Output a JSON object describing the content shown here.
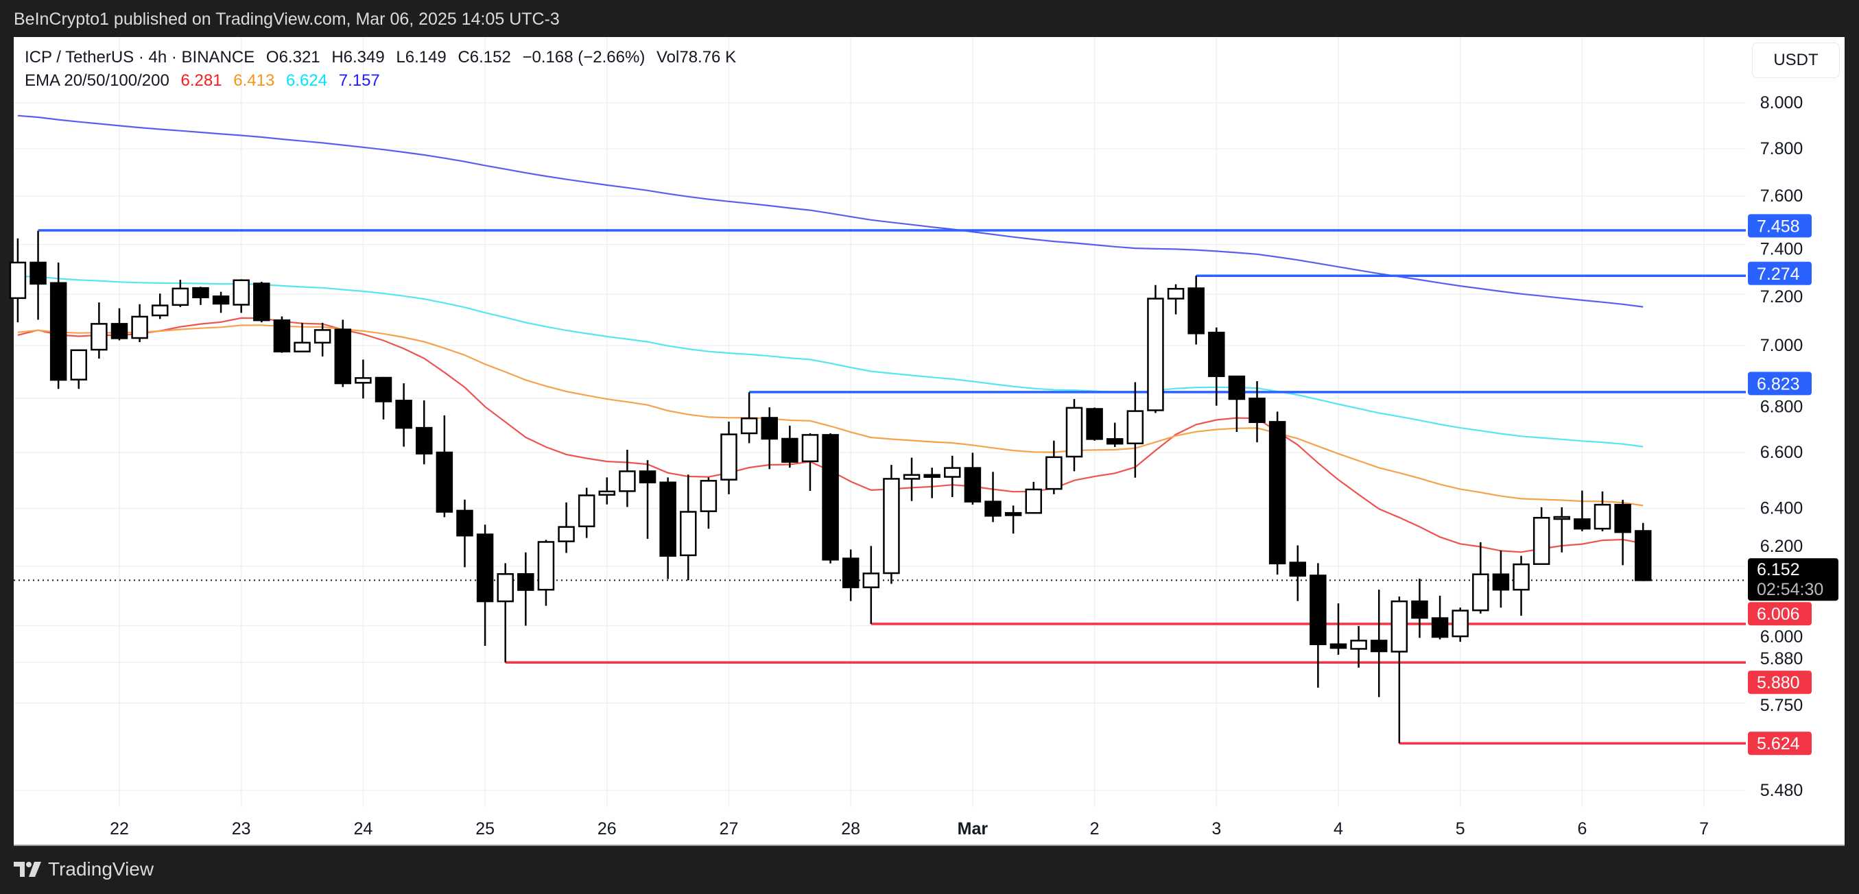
{
  "header": {
    "published": "BeInCrypto1 published on TradingView.com, Mar 06, 2025 14:05 UTC-3",
    "symbol": "ICP / TetherUS · 4h · BINANCE",
    "open": "O6.321",
    "high": "H6.349",
    "low": "L6.149",
    "close": "C6.152",
    "change": "−0.168 (−2.66%)",
    "volume": "Vol78.76 K",
    "ema_label": "EMA 20/50/100/200",
    "ema_values": [
      "6.281",
      "6.413",
      "6.624",
      "7.157"
    ]
  },
  "currency": "USDT",
  "footer": {
    "brand": "TradingView"
  },
  "colors": {
    "ema20": "#ef5350",
    "ema50": "#f7a14b",
    "ema100": "#55e6f0",
    "ema200": "#5c5cf0",
    "ema20_text": "#ff1a1a",
    "ema50_text": "#f7931a",
    "ema100_text": "#00e5ff",
    "ema200_text": "#1a1aff",
    "support": "#f23645",
    "resistance": "#2962ff"
  },
  "chart_data": {
    "type": "candlestick",
    "title": "ICP / TetherUS · 4h · BINANCE",
    "scale": "log",
    "ylim": [
      5.4,
      8.1
    ],
    "y_ticks": [
      "8.000",
      "7.800",
      "7.600",
      "7.400",
      "7.200",
      "7.000",
      "6.800",
      "6.600",
      "6.400",
      "6.200",
      "6.000",
      "5.880",
      "5.750",
      "5.480"
    ],
    "x_ticks": [
      {
        "label": "22",
        "bold": false
      },
      {
        "label": "23",
        "bold": false
      },
      {
        "label": "24",
        "bold": false
      },
      {
        "label": "25",
        "bold": false
      },
      {
        "label": "26",
        "bold": false
      },
      {
        "label": "27",
        "bold": false
      },
      {
        "label": "28",
        "bold": false
      },
      {
        "label": "Mar",
        "bold": true
      },
      {
        "label": "2",
        "bold": false
      },
      {
        "label": "3",
        "bold": false
      },
      {
        "label": "4",
        "bold": false
      },
      {
        "label": "5",
        "bold": false
      },
      {
        "label": "6",
        "bold": false
      },
      {
        "label": "7",
        "bold": false
      }
    ],
    "candles_before_first_tick": 5,
    "candles_per_day": 6,
    "ohlc": [
      [
        7.185,
        7.425,
        7.09,
        7.327
      ],
      [
        7.327,
        7.456,
        7.1,
        7.242
      ],
      [
        7.245,
        7.327,
        6.835,
        6.869
      ],
      [
        6.87,
        6.985,
        6.835,
        6.982
      ],
      [
        6.984,
        7.168,
        6.95,
        7.084
      ],
      [
        7.084,
        7.145,
        7.02,
        7.028
      ],
      [
        7.029,
        7.161,
        7.013,
        7.112
      ],
      [
        7.117,
        7.203,
        7.103,
        7.156
      ],
      [
        7.158,
        7.258,
        7.15,
        7.223
      ],
      [
        7.225,
        7.23,
        7.158,
        7.188
      ],
      [
        7.192,
        7.21,
        7.127,
        7.163
      ],
      [
        7.159,
        7.26,
        7.127,
        7.256
      ],
      [
        7.243,
        7.25,
        7.09,
        7.098
      ],
      [
        7.098,
        7.113,
        6.972,
        6.977
      ],
      [
        6.977,
        7.088,
        6.975,
        7.011
      ],
      [
        7.011,
        7.088,
        6.958,
        7.06
      ],
      [
        7.062,
        7.1,
        6.842,
        6.856
      ],
      [
        6.858,
        6.946,
        6.799,
        6.876
      ],
      [
        6.877,
        6.88,
        6.721,
        6.788
      ],
      [
        6.791,
        6.856,
        6.621,
        6.69
      ],
      [
        6.69,
        6.792,
        6.557,
        6.596
      ],
      [
        6.6,
        6.736,
        6.369,
        6.388
      ],
      [
        6.392,
        6.431,
        6.196,
        6.305
      ],
      [
        6.309,
        6.343,
        5.934,
        6.081
      ],
      [
        6.081,
        6.21,
        5.88,
        6.173
      ],
      [
        6.173,
        6.247,
        6.0,
        6.119
      ],
      [
        6.12,
        6.29,
        6.066,
        6.283
      ],
      [
        6.285,
        6.421,
        6.245,
        6.335
      ],
      [
        6.337,
        6.473,
        6.297,
        6.446
      ],
      [
        6.448,
        6.51,
        6.414,
        6.46
      ],
      [
        6.461,
        6.61,
        6.405,
        6.532
      ],
      [
        6.532,
        6.572,
        6.294,
        6.492
      ],
      [
        6.492,
        6.51,
        6.156,
        6.235
      ],
      [
        6.237,
        6.52,
        6.152,
        6.388
      ],
      [
        6.39,
        6.51,
        6.329,
        6.498
      ],
      [
        6.502,
        6.713,
        6.45,
        6.666
      ],
      [
        6.67,
        6.822,
        6.634,
        6.725
      ],
      [
        6.727,
        6.766,
        6.54,
        6.65
      ],
      [
        6.65,
        6.698,
        6.545,
        6.566
      ],
      [
        6.568,
        6.67,
        6.462,
        6.664
      ],
      [
        6.664,
        6.67,
        6.209,
        6.222
      ],
      [
        6.226,
        6.257,
        6.082,
        6.128
      ],
      [
        6.128,
        6.269,
        6.006,
        6.175
      ],
      [
        6.176,
        6.555,
        6.14,
        6.505
      ],
      [
        6.505,
        6.581,
        6.426,
        6.519
      ],
      [
        6.519,
        6.545,
        6.436,
        6.512
      ],
      [
        6.512,
        6.588,
        6.44,
        6.544
      ],
      [
        6.544,
        6.599,
        6.413,
        6.424
      ],
      [
        6.424,
        6.53,
        6.352,
        6.374
      ],
      [
        6.384,
        6.41,
        6.312,
        6.376
      ],
      [
        6.384,
        6.494,
        6.384,
        6.467
      ],
      [
        6.469,
        6.643,
        6.45,
        6.583
      ],
      [
        6.585,
        6.797,
        6.532,
        6.764
      ],
      [
        6.76,
        6.765,
        6.643,
        6.649
      ],
      [
        6.649,
        6.709,
        6.62,
        6.632
      ],
      [
        6.633,
        6.86,
        6.509,
        6.752
      ],
      [
        6.755,
        7.237,
        6.745,
        7.183
      ],
      [
        7.183,
        7.24,
        7.121,
        7.222
      ],
      [
        7.224,
        7.274,
        7.004,
        7.047
      ],
      [
        7.05,
        7.07,
        6.772,
        6.883
      ],
      [
        6.882,
        6.884,
        6.675,
        6.797
      ],
      [
        6.799,
        6.864,
        6.637,
        6.711
      ],
      [
        6.712,
        6.75,
        6.171,
        6.209
      ],
      [
        6.212,
        6.271,
        6.082,
        6.167
      ],
      [
        6.168,
        6.21,
        5.799,
        5.939
      ],
      [
        5.939,
        6.074,
        5.905,
        5.927
      ],
      [
        5.924,
        5.999,
        5.863,
        5.951
      ],
      [
        5.951,
        6.12,
        5.769,
        5.916
      ],
      [
        5.915,
        6.097,
        5.624,
        6.081
      ],
      [
        6.081,
        6.157,
        5.96,
        6.026
      ],
      [
        6.025,
        6.1,
        5.955,
        5.963
      ],
      [
        5.965,
        6.06,
        5.947,
        6.05
      ],
      [
        6.051,
        6.282,
        6.04,
        6.172
      ],
      [
        6.172,
        6.253,
        6.06,
        6.12
      ],
      [
        6.12,
        6.235,
        6.033,
        6.206
      ],
      [
        6.207,
        6.404,
        6.206,
        6.367
      ],
      [
        6.367,
        6.404,
        6.247,
        6.37
      ],
      [
        6.362,
        6.463,
        6.32,
        6.329
      ],
      [
        6.329,
        6.46,
        6.32,
        6.413
      ],
      [
        6.413,
        6.43,
        6.203,
        6.317
      ],
      [
        6.321,
        6.349,
        6.149,
        6.152
      ]
    ],
    "ema_series": [
      {
        "name": "EMA 20",
        "period": 20,
        "start": 7.01,
        "color_key": "ema20"
      },
      {
        "name": "EMA 50",
        "period": 50,
        "start": 7.04,
        "color_key": "ema50"
      },
      {
        "name": "EMA 100",
        "period": 100,
        "start": 7.27,
        "color_key": "ema100"
      },
      {
        "name": "EMA 200",
        "period": 200,
        "start": 7.95,
        "color_key": "ema200"
      }
    ],
    "levels": [
      {
        "price": 7.458,
        "label": "7.458",
        "kind": "resistance",
        "from_candle": 1
      },
      {
        "price": 7.274,
        "label": "7.274",
        "kind": "resistance",
        "from_candle": 58
      },
      {
        "price": 6.823,
        "label": "6.823",
        "kind": "resistance",
        "from_candle": 36
      },
      {
        "price": 6.006,
        "label": "6.006",
        "kind": "support",
        "from_candle": 42
      },
      {
        "price": 5.88,
        "label": "5.880",
        "kind": "support",
        "from_candle": 24
      },
      {
        "price": 5.624,
        "label": "5.624",
        "kind": "support",
        "from_candle": 68
      }
    ],
    "last_price": {
      "price": 6.152,
      "label": "6.152",
      "countdown": "02:54:30"
    }
  }
}
